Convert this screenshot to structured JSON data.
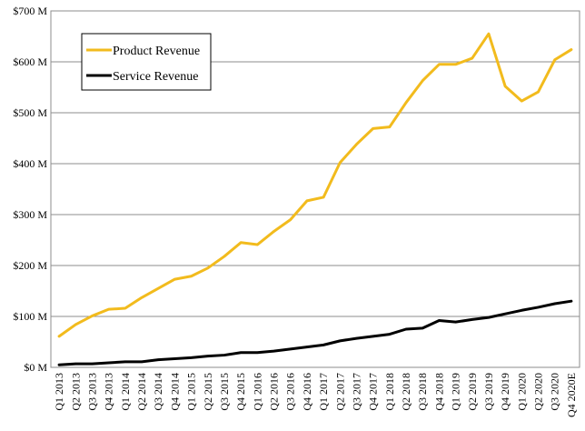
{
  "chart_data": {
    "type": "line",
    "title": "",
    "xlabel": "",
    "ylabel": "",
    "ylim": [
      0,
      700
    ],
    "y_ticks": [
      "$0 M",
      "$100 M",
      "$200 M",
      "$300 M",
      "$400 M",
      "$500 M",
      "$600 M",
      "$700 M"
    ],
    "grid": "horizontal",
    "legend_position": "top-left",
    "categories": [
      "Q1 2013",
      "Q2 2013",
      "Q3 2013",
      "Q4 2013",
      "Q1 2014",
      "Q2 2014",
      "Q3 2014",
      "Q4 2014",
      "Q1 2015",
      "Q2 2015",
      "Q3 2015",
      "Q4 2015",
      "Q1 2016",
      "Q2 2016",
      "Q3 2016",
      "Q4 2016",
      "Q1 2017",
      "Q2 2017",
      "Q3 2017",
      "Q4 2017",
      "Q1 2018",
      "Q2 2018",
      "Q3 2018",
      "Q4 2018",
      "Q1 2019",
      "Q2 2019",
      "Q3 2019",
      "Q4 2019",
      "Q1 2020",
      "Q2 2020",
      "Q3 2020",
      "Q4 2020E"
    ],
    "series": [
      {
        "name": "Product Revenue",
        "color": "#f2bb1d",
        "values": [
          61,
          84,
          101,
          114,
          116,
          137,
          155,
          173,
          179,
          195,
          218,
          245,
          241,
          267,
          290,
          327,
          334,
          402,
          438,
          469,
          472,
          520,
          563,
          595,
          595,
          607,
          655,
          552,
          523,
          541,
          604,
          624
        ]
      },
      {
        "name": "Service Revenue",
        "color": "#000000",
        "values": [
          5,
          7,
          7,
          9,
          11,
          11,
          15,
          17,
          19,
          22,
          24,
          29,
          29,
          32,
          36,
          40,
          44,
          52,
          57,
          61,
          65,
          75,
          77,
          92,
          89,
          94,
          98,
          105,
          112,
          118,
          125,
          130
        ]
      }
    ]
  }
}
